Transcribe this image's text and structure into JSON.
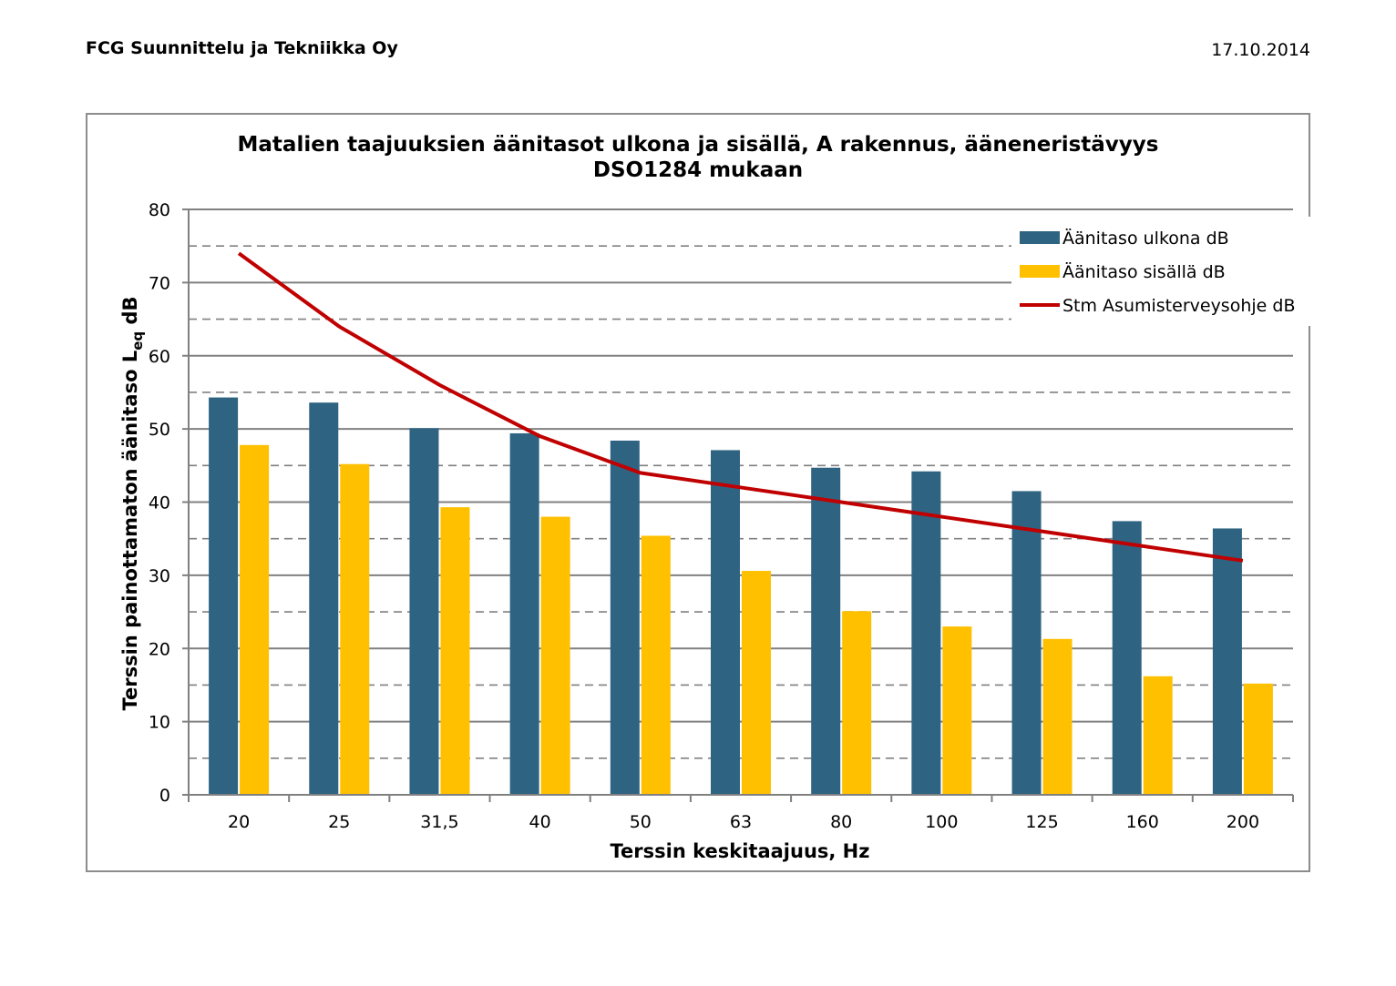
{
  "header": {
    "company": "FCG Suunnittelu ja Tekniikka Oy",
    "date": "17.10.2014"
  },
  "colors": {
    "outdoor": "#2e6482",
    "indoor": "#ffc000",
    "guideline": "#c00000",
    "grid": "#808080",
    "frame": "#8c8c8c"
  },
  "chart_data": {
    "type": "bar",
    "title_line1": "Matalien taajuuksien äänitasot ulkona ja sisällä, A rakennus, ääneneristävyys",
    "title_line2": "DSO1284 mukaan",
    "xlabel": "Terssin keskitaajuus, Hz",
    "ylabel_main": "Terssin painottamaton äänitaso L",
    "ylabel_sub": "eq",
    "ylabel_unit": " dB",
    "ylim": [
      0,
      80
    ],
    "yticks": [
      0,
      10,
      20,
      30,
      40,
      50,
      60,
      70,
      80
    ],
    "grid": true,
    "legend_position": "top-right",
    "categories": [
      "20",
      "25",
      "31,5",
      "40",
      "50",
      "63",
      "80",
      "100",
      "125",
      "160",
      "200"
    ],
    "series": [
      {
        "name": "Äänitaso ulkona dB",
        "kind": "bar",
        "values": [
          54.3,
          53.6,
          50.1,
          49.4,
          48.4,
          47.1,
          44.7,
          44.2,
          41.5,
          37.4,
          36.4
        ]
      },
      {
        "name": "Äänitaso sisällä dB",
        "kind": "bar",
        "values": [
          47.8,
          45.2,
          39.3,
          38.0,
          35.4,
          30.6,
          25.1,
          23.0,
          21.3,
          16.2,
          15.2
        ]
      },
      {
        "name": "Stm Asumisterveysohje dB",
        "kind": "line",
        "values": [
          74,
          64,
          56,
          49,
          44,
          42,
          40,
          38,
          36,
          34,
          32
        ]
      }
    ]
  }
}
